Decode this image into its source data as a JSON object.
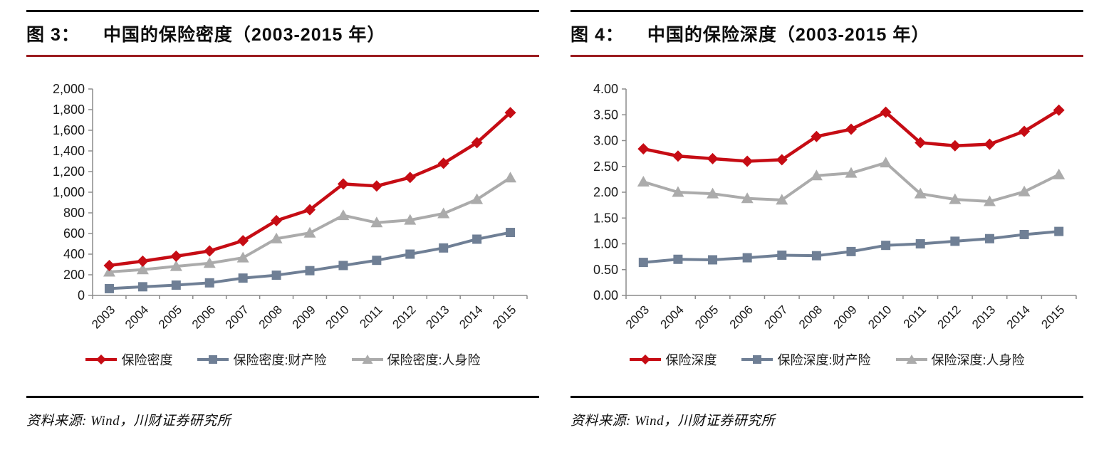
{
  "figures": [
    {
      "figure_label": "图 3：",
      "title": "中国的保险密度（2003-2015 年）",
      "source": "资料来源: Wind，川财证券研究所"
    },
    {
      "figure_label": "图 4：",
      "title": "中国的保险深度（2003-2015 年）",
      "source": "资料来源: Wind，川财证券研究所"
    }
  ],
  "colors": {
    "rule_black": "#000000",
    "rule_dark_red": "#9b1b1f",
    "axis_gray": "#8c8c8c",
    "tick_label": "#1a1a1a",
    "series_red": "#c60c14",
    "series_slate": "#6f7f95",
    "series_gray": "#ababab"
  },
  "chart_data": [
    {
      "type": "line",
      "title": "中国的保险密度（2003-2015 年）",
      "categories": [
        "2003",
        "2004",
        "2005",
        "2006",
        "2007",
        "2008",
        "2009",
        "2010",
        "2011",
        "2012",
        "2013",
        "2014",
        "2015"
      ],
      "series": [
        {
          "name": "保险密度",
          "marker": "diamond",
          "color": "#c60c14",
          "values": [
            290,
            332,
            380,
            431,
            530,
            725,
            830,
            1080,
            1060,
            1143,
            1280,
            1480,
            1771
          ]
        },
        {
          "name": "保险密度:财产险",
          "marker": "square",
          "color": "#6f7f95",
          "values": [
            66,
            84,
            100,
            122,
            168,
            196,
            240,
            290,
            340,
            400,
            460,
            545,
            610
          ]
        },
        {
          "name": "保险密度:人身险",
          "marker": "triangle",
          "color": "#ababab",
          "values": [
            228,
            250,
            282,
            312,
            365,
            550,
            605,
            775,
            705,
            730,
            793,
            930,
            1140
          ]
        }
      ],
      "ylim": [
        0,
        2000
      ],
      "ytick_step": 200,
      "y_format": "thousands",
      "grid": false,
      "legend_position": "bottom"
    },
    {
      "type": "line",
      "title": "中国的保险深度（2003-2015 年）",
      "categories": [
        "2003",
        "2004",
        "2005",
        "2006",
        "2007",
        "2008",
        "2009",
        "2010",
        "2011",
        "2012",
        "2013",
        "2014",
        "2015"
      ],
      "series": [
        {
          "name": "保险深度",
          "marker": "diamond",
          "color": "#c60c14",
          "values": [
            2.84,
            2.7,
            2.65,
            2.6,
            2.63,
            3.08,
            3.22,
            3.55,
            2.96,
            2.9,
            2.93,
            3.18,
            3.59
          ]
        },
        {
          "name": "保险深度:财产险",
          "marker": "square",
          "color": "#6f7f95",
          "values": [
            0.64,
            0.7,
            0.69,
            0.73,
            0.78,
            0.77,
            0.85,
            0.97,
            1.0,
            1.05,
            1.1,
            1.18,
            1.24
          ]
        },
        {
          "name": "保险深度:人身险",
          "marker": "triangle",
          "color": "#ababab",
          "values": [
            2.2,
            2.0,
            1.97,
            1.88,
            1.85,
            2.32,
            2.37,
            2.57,
            1.97,
            1.86,
            1.82,
            2.01,
            2.34
          ]
        }
      ],
      "ylim": [
        0,
        4
      ],
      "ytick_step": 0.5,
      "y_format": "fixed2",
      "grid": false,
      "legend_position": "bottom"
    }
  ]
}
